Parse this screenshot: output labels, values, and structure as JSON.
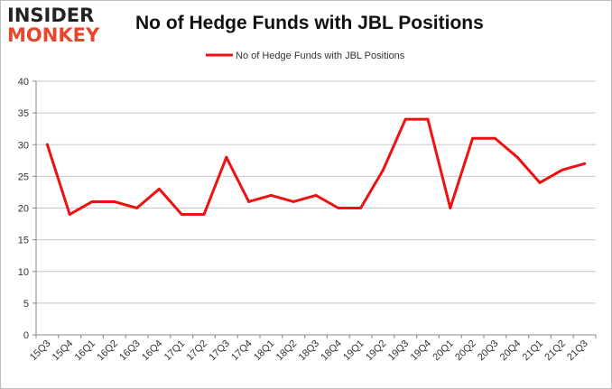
{
  "logo": {
    "line1": "INSIDER",
    "line2": "MONKEY"
  },
  "chart_data": {
    "type": "line",
    "title": "No of Hedge Funds with JBL Positions",
    "xlabel": "",
    "ylabel": "",
    "categories": [
      "15Q3",
      "15Q4",
      "16Q1",
      "16Q2",
      "16Q3",
      "16Q4",
      "17Q1",
      "17Q2",
      "17Q3",
      "17Q4",
      "18Q1",
      "18Q2",
      "18Q3",
      "18Q4",
      "19Q1",
      "19Q2",
      "19Q3",
      "19Q4",
      "20Q1",
      "20Q2",
      "20Q3",
      "20Q4",
      "21Q1",
      "21Q2",
      "21Q3"
    ],
    "series": [
      {
        "name": "No of Hedge Funds with JBL Positions",
        "color": "#ee1111",
        "values": [
          30,
          19,
          21,
          21,
          20,
          23,
          19,
          19,
          28,
          21,
          22,
          21,
          22,
          20,
          20,
          26,
          34,
          34,
          20,
          31,
          31,
          28,
          24,
          26,
          27
        ]
      }
    ],
    "ylim": [
      0,
      40
    ],
    "yticks": [
      0,
      5,
      10,
      15,
      20,
      25,
      30,
      35,
      40
    ],
    "grid": "horizontal",
    "legend": "top-center"
  }
}
